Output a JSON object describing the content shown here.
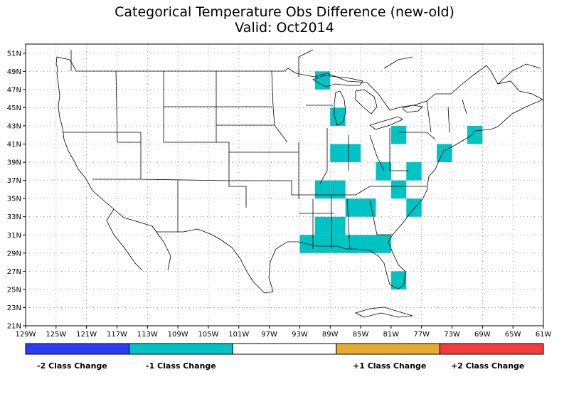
{
  "title": "Categorical Temperature Obs Difference (new-old)",
  "subtitle": "Valid: Oct2014",
  "map": {
    "lon_min": -129,
    "lon_max": -61,
    "lat_min": 21,
    "lat_max": 52,
    "lon_ticks": [
      "129W",
      "125W",
      "121W",
      "117W",
      "113W",
      "109W",
      "105W",
      "101W",
      "97W",
      "93W",
      "89W",
      "85W",
      "81W",
      "77W",
      "73W",
      "69W",
      "65W",
      "61W"
    ],
    "lat_ticks": [
      "21N",
      "23N",
      "25N",
      "27N",
      "29N",
      "31N",
      "33N",
      "35N",
      "37N",
      "39N",
      "41N",
      "43N",
      "45N",
      "47N",
      "49N",
      "51N"
    ],
    "grid": "dotted",
    "cell_size_deg": 2,
    "cells_minus1": [
      {
        "lon": -90,
        "lat": 48
      },
      {
        "lon": -88,
        "lat": 44
      },
      {
        "lon": -80,
        "lat": 42
      },
      {
        "lon": -70,
        "lat": 42
      },
      {
        "lon": -88,
        "lat": 40
      },
      {
        "lon": -86,
        "lat": 40
      },
      {
        "lon": -74,
        "lat": 40
      },
      {
        "lon": -82,
        "lat": 38
      },
      {
        "lon": -78,
        "lat": 38
      },
      {
        "lon": -90,
        "lat": 36
      },
      {
        "lon": -88,
        "lat": 36
      },
      {
        "lon": -80,
        "lat": 36
      },
      {
        "lon": -86,
        "lat": 34
      },
      {
        "lon": -84,
        "lat": 34
      },
      {
        "lon": -78,
        "lat": 34
      },
      {
        "lon": -90,
        "lat": 32
      },
      {
        "lon": -88,
        "lat": 32
      },
      {
        "lon": -92,
        "lat": 30
      },
      {
        "lon": -90,
        "lat": 30
      },
      {
        "lon": -88,
        "lat": 30
      },
      {
        "lon": -86,
        "lat": 30
      },
      {
        "lon": -84,
        "lat": 30
      },
      {
        "lon": -82,
        "lat": 30
      },
      {
        "lon": -80,
        "lat": 26
      }
    ]
  },
  "legend": {
    "colors": [
      "#2a3df5",
      "#00c4c4",
      "#ffffff",
      "#e6ac30",
      "#f53c3c"
    ],
    "labels": [
      "-2 Class Change",
      "-1 Class Change",
      "+1 Class Change",
      "+2 Class Change"
    ]
  }
}
